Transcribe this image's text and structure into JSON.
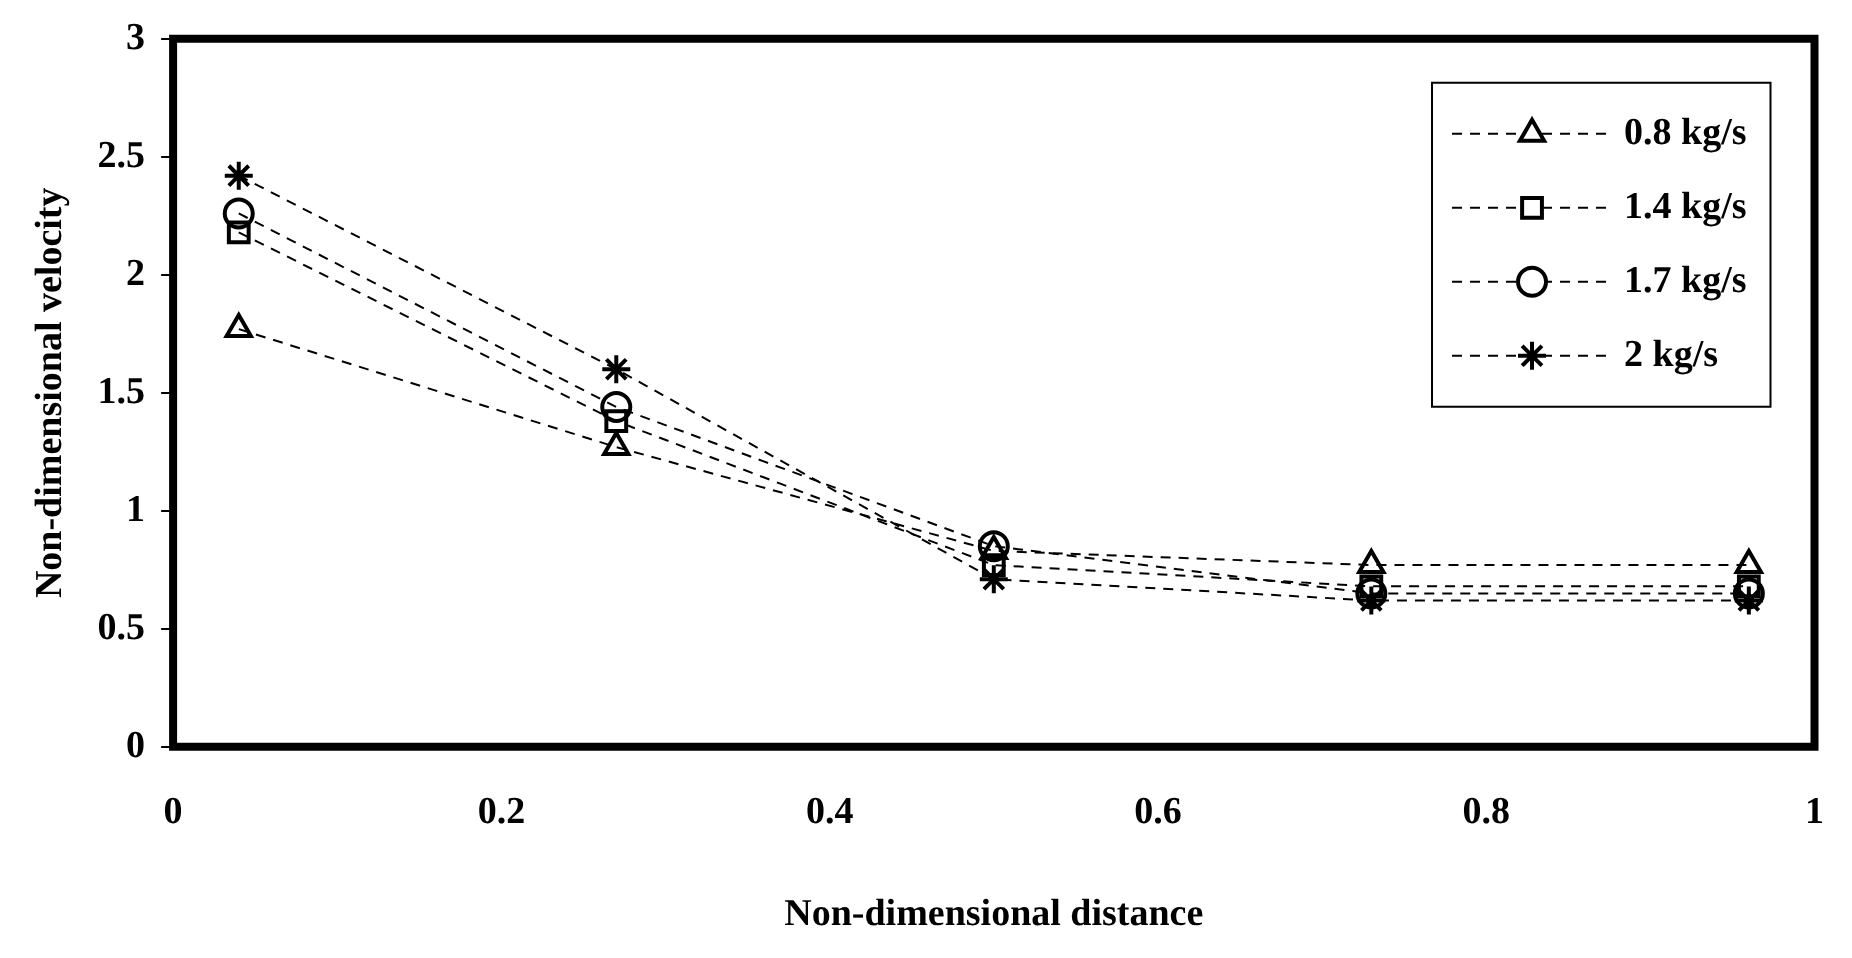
{
  "chart_data": {
    "type": "line",
    "xlabel": "Non-dimensional distance",
    "ylabel": "Non-dimensional velocity",
    "x": [
      0.04,
      0.27,
      0.5,
      0.73,
      0.96
    ],
    "series": [
      {
        "name": "0.8 kg/s",
        "color": "#000000",
        "marker": "triangle",
        "values": [
          1.77,
          1.27,
          0.83,
          0.77,
          0.77
        ]
      },
      {
        "name": "1.4 kg/s",
        "color": "#000000",
        "marker": "square",
        "values": [
          2.18,
          1.38,
          0.77,
          0.68,
          0.68
        ]
      },
      {
        "name": "1.7 kg/s",
        "color": "#000000",
        "marker": "circle",
        "values": [
          2.26,
          1.44,
          0.85,
          0.65,
          0.65
        ]
      },
      {
        "name": "2 kg/s",
        "color": "#000000",
        "marker": "cross",
        "values": [
          2.42,
          1.6,
          0.71,
          0.62,
          0.62
        ]
      }
    ],
    "xlim": [
      0,
      1
    ],
    "xticks": [
      0,
      0.2,
      0.4,
      0.6,
      0.8,
      1
    ],
    "ylim": [
      0,
      3
    ],
    "yticks": [
      0,
      0.5,
      1,
      1.5,
      2,
      2.5,
      3
    ],
    "grid": false,
    "legend": "top right",
    "line_style": "dashed"
  }
}
